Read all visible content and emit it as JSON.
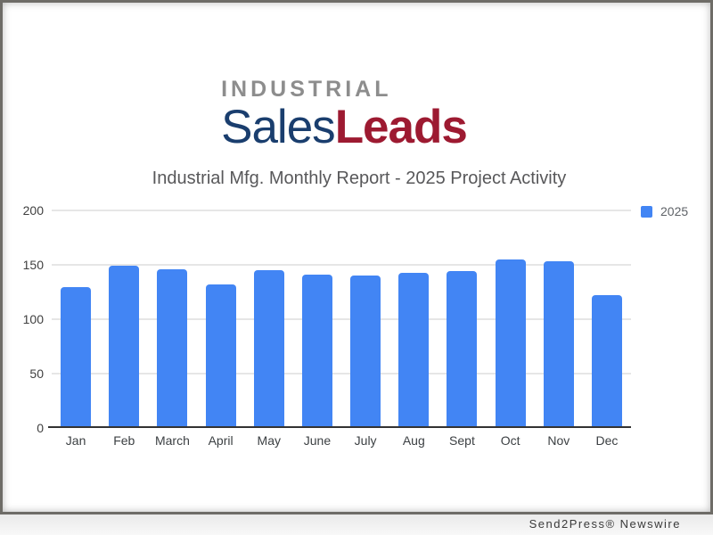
{
  "logo": {
    "line1": "INDUSTRIAL",
    "line2_part1": "Sales",
    "line2_part2": "Leads",
    "color_line1": "#8d8d8d",
    "color_part1": "#1a3e6e",
    "color_part2": "#9d1a31"
  },
  "chart_data": {
    "type": "bar",
    "title": "Industrial Mfg. Monthly Report - 2025 Project Activity",
    "categories": [
      "Jan",
      "Feb",
      "March",
      "April",
      "May",
      "June",
      "July",
      "Aug",
      "Sept",
      "Oct",
      "Nov",
      "Dec"
    ],
    "series": [
      {
        "name": "2025",
        "color": "#4285f4",
        "values": [
          129,
          149,
          146,
          132,
          145,
          141,
          140,
          142,
          144,
          155,
          153,
          122
        ]
      }
    ],
    "xlabel": "",
    "ylabel": "",
    "ylim": [
      0,
      200
    ],
    "yticks": [
      0,
      50,
      100,
      150,
      200
    ],
    "grid": true,
    "legend_position": "top-right",
    "axis_color": "#333333",
    "gridline_color": "#cccccc",
    "tick_label_color": "#404040"
  },
  "footer": {
    "credit": "Send2Press® Newswire"
  }
}
